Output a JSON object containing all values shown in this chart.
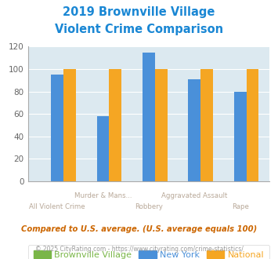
{
  "title_line1": "2019 Brownville Village",
  "title_line2": "Violent Crime Comparison",
  "categories": [
    "All Violent Crime",
    "Murder & Mans...",
    "Robbery",
    "Aggravated Assault",
    "Rape"
  ],
  "brownville_village": [
    0,
    0,
    0,
    0,
    0
  ],
  "new_york": [
    95,
    58,
    115,
    91,
    80
  ],
  "national": [
    100,
    100,
    100,
    100,
    100
  ],
  "color_bv": "#7ab648",
  "color_ny": "#4a90d9",
  "color_nat": "#f5a623",
  "title_color": "#1a87d4",
  "ylim": [
    0,
    120
  ],
  "yticks": [
    0,
    20,
    40,
    60,
    80,
    100,
    120
  ],
  "background_color": "#dce9f0",
  "footnote1": "Compared to U.S. average. (U.S. average equals 100)",
  "footnote2": "© 2025 CityRating.com - https://www.cityrating.com/crime-statistics/",
  "legend_labels": [
    "Brownville Village",
    "New York",
    "National"
  ],
  "xtick_color": "#b8a898",
  "grid_color": "white",
  "footnote1_color": "#cc6600",
  "footnote2_color": "#999999"
}
